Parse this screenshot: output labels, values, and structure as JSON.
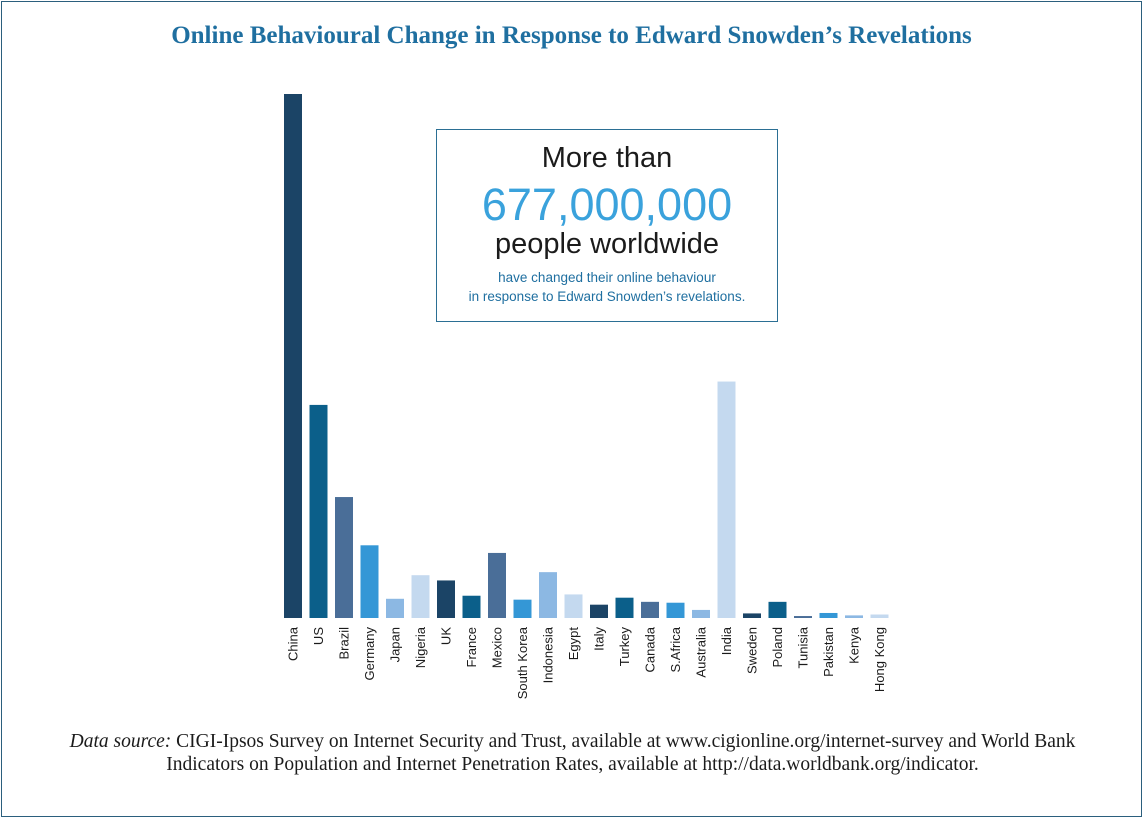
{
  "title": "Online Behavioural Change in Response to Edward Snowden’s Revelations",
  "callout": {
    "line1": "More than",
    "number": "677,000,000",
    "line3": "people worldwide",
    "line4": "have changed their online behaviour",
    "line5": "in response to Edward Snowden’s revelations."
  },
  "source": {
    "label": "Data source:",
    "text": " CIGI-Ipsos Survey on Internet Security and Trust, available at www.cigionline.org/internet-survey and World Bank Indicators on Population and Internet Penetration Rates, available at http://data.worldbank.org/indicator."
  },
  "colors": {
    "navy": "#1b4466",
    "teal": "#0b5f8a",
    "slate": "#4a6e98",
    "sky": "#3497d6",
    "light": "#8cb8e3",
    "pale": "#c4d9ef",
    "title": "#1f6fa0",
    "frame": "#2b5f7d"
  },
  "chart_data": {
    "type": "bar",
    "title": "Online Behavioural Change in Response to Edward Snowden’s Revelations",
    "xlabel": "",
    "ylabel": "",
    "ylim": [
      0,
      240
    ],
    "grid": false,
    "legend": "none",
    "categories": [
      "China",
      "US",
      "Brazil",
      "Germany",
      "Japan",
      "Nigeria",
      "UK",
      "France",
      "Mexico",
      "South Korea",
      "Indonesia",
      "Egypt",
      "Italy",
      "Turkey",
      "Canada",
      "S.Africa",
      "Australia",
      "India",
      "Sweden",
      "Poland",
      "Tunisia",
      "Pakistan",
      "Kenya",
      "Hong Kong"
    ],
    "values": [
      240,
      97.6,
      55.4,
      33.3,
      8.8,
      19.6,
      17.2,
      10.2,
      29.8,
      8.4,
      21.0,
      10.8,
      6.1,
      9.3,
      7.4,
      7.0,
      3.7,
      108.3,
      2.1,
      7.4,
      0.9,
      2.3,
      1.2,
      1.6
    ],
    "bar_colors": [
      "navy",
      "teal",
      "slate",
      "sky",
      "light",
      "pale",
      "navy",
      "teal",
      "slate",
      "sky",
      "light",
      "pale",
      "navy",
      "teal",
      "slate",
      "sky",
      "light",
      "pale",
      "navy",
      "teal",
      "slate",
      "sky",
      "light",
      "pale"
    ]
  }
}
